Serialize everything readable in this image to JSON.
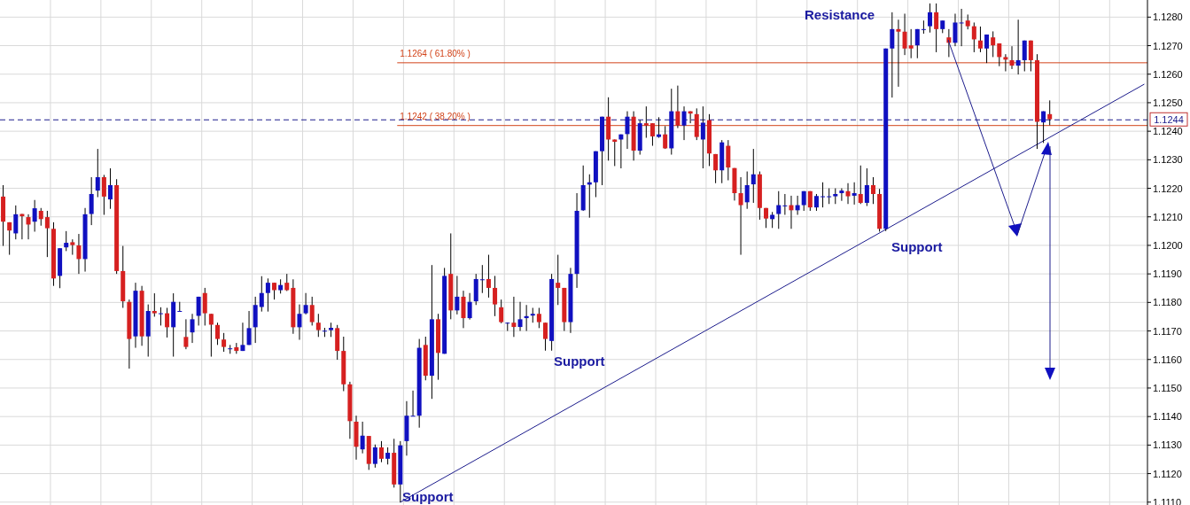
{
  "chart_data": {
    "type": "candlestick",
    "categories": [
      null,
      null,
      null,
      null,
      null,
      null,
      null,
      null,
      null,
      null,
      null,
      null,
      null,
      null,
      null,
      null,
      null,
      null,
      null,
      null,
      null,
      null,
      null,
      null,
      null,
      null,
      null,
      null,
      null,
      null,
      null,
      null,
      null,
      null,
      null,
      null,
      null,
      null,
      null,
      null,
      null,
      null,
      null,
      null,
      null,
      null,
      null,
      null,
      null,
      null,
      null,
      null,
      null,
      null,
      null,
      null,
      null,
      null,
      null,
      null,
      null,
      null,
      null,
      null,
      null,
      null,
      null,
      null,
      null,
      null,
      null,
      null,
      null,
      null,
      null,
      null,
      null,
      null,
      null,
      null,
      null,
      null,
      null,
      null,
      null,
      null,
      null,
      null,
      null,
      null,
      null,
      null,
      null,
      null,
      null,
      null,
      null,
      null,
      null,
      null,
      null,
      null,
      null,
      null,
      null,
      null,
      null,
      null,
      null,
      null,
      null,
      null,
      null,
      null,
      null,
      null,
      null,
      null,
      null,
      null,
      null,
      null,
      null,
      null,
      null,
      null,
      null,
      null,
      null,
      null,
      null,
      null,
      null,
      null,
      null,
      null,
      null,
      null,
      null,
      null,
      null,
      null,
      null,
      null,
      null,
      null,
      null,
      null,
      null,
      null,
      null,
      null,
      null,
      null,
      null,
      null,
      null,
      null,
      null,
      null,
      null,
      null,
      null,
      null,
      null,
      null,
      null,
      null,
      null,
      null,
      null,
      null,
      null,
      null,
      null,
      null,
      null,
      null,
      null,
      null,
      null,
      null
    ],
    "ohlc": [
      [
        1.12171,
        1.12211,
        1.11998,
        1.12083
      ],
      [
        1.12081,
        1.12081,
        1.11967,
        1.12052
      ],
      [
        1.12042,
        1.1214,
        1.12021,
        1.12109
      ],
      [
        1.1211,
        1.1211,
        1.12021,
        1.12102
      ],
      [
        1.12099,
        1.12109,
        1.12021,
        1.12073
      ],
      [
        1.12083,
        1.12159,
        1.12048,
        1.1213
      ],
      [
        1.12121,
        1.12131,
        1.12069,
        1.12092
      ],
      [
        1.12099,
        1.12121,
        1.11959,
        1.1206
      ],
      [
        1.12058,
        1.12081,
        1.11858,
        1.11884
      ],
      [
        1.11893,
        1.1199,
        1.1185,
        1.1199
      ],
      [
        1.11993,
        1.1205,
        1.1198,
        1.12009
      ],
      [
        1.12011,
        1.12021,
        1.11967,
        1.12001
      ],
      [
        1.12,
        1.1204,
        1.119,
        1.11952
      ],
      [
        1.11952,
        1.12131,
        1.11908,
        1.12109
      ],
      [
        1.1211,
        1.12239,
        1.12071,
        1.1218
      ],
      [
        1.12192,
        1.12338,
        1.12169,
        1.12239
      ],
      [
        1.12239,
        1.12247,
        1.12107,
        1.12171
      ],
      [
        1.12161,
        1.1227,
        1.12128,
        1.12211
      ],
      [
        1.12211,
        1.12232,
        1.119,
        1.1191
      ],
      [
        1.1191,
        1.11998,
        1.11781,
        1.11804
      ],
      [
        1.11802,
        1.1181,
        1.11568,
        1.11672
      ],
      [
        1.11681,
        1.11869,
        1.11641,
        1.11841
      ],
      [
        1.11841,
        1.11858,
        1.11648,
        1.11681
      ],
      [
        1.11681,
        1.11793,
        1.1161,
        1.1177
      ],
      [
        1.1177,
        1.11832,
        1.1175,
        1.11762
      ],
      [
        1.11762,
        1.11783,
        1.11719,
        1.11762
      ],
      [
        1.11762,
        1.11781,
        1.11677,
        1.11713
      ],
      [
        1.11713,
        1.11832,
        1.1161,
        1.11802
      ],
      [
        1.1177,
        1.11802,
        1.11768,
        1.1177
      ],
      [
        1.11679,
        1.11741,
        1.11636,
        1.11644
      ],
      [
        1.11695,
        1.1176,
        1.11658,
        1.11741
      ],
      [
        1.11753,
        1.1182,
        1.11719,
        1.1182
      ],
      [
        1.11833,
        1.11851,
        1.11719,
        1.11762
      ],
      [
        1.1176,
        1.1176,
        1.1161,
        1.11722
      ],
      [
        1.11721,
        1.11729,
        1.11651,
        1.11672
      ],
      [
        1.1167,
        1.11693,
        1.11627,
        1.11644
      ],
      [
        1.11639,
        1.11651,
        1.1162,
        1.11639
      ],
      [
        1.11643,
        1.11658,
        1.1162,
        1.1163
      ],
      [
        1.1163,
        1.11729,
        1.1163,
        1.11651
      ],
      [
        1.11651,
        1.1177,
        1.11651,
        1.1171
      ],
      [
        1.11713,
        1.1182,
        1.11658,
        1.11791
      ],
      [
        1.11784,
        1.11892,
        1.11768,
        1.11833
      ],
      [
        1.11833,
        1.11884,
        1.11768,
        1.11869
      ],
      [
        1.11869,
        1.11869,
        1.1181,
        1.11843
      ],
      [
        1.11843,
        1.11881,
        1.11831,
        1.11861
      ],
      [
        1.11869,
        1.119,
        1.1184,
        1.11843
      ],
      [
        1.11851,
        1.11881,
        1.1169,
        1.11713
      ],
      [
        1.11713,
        1.11793,
        1.11669,
        1.1176
      ],
      [
        1.11762,
        1.11833,
        1.11758,
        1.11791
      ],
      [
        1.11791,
        1.1182,
        1.11719,
        1.11731
      ],
      [
        1.11729,
        1.1176,
        1.11679,
        1.11703
      ],
      [
        1.11701,
        1.11711,
        1.11679,
        1.11701
      ],
      [
        1.11703,
        1.11729,
        1.11679,
        1.11711
      ],
      [
        1.1171,
        1.11721,
        1.11599,
        1.1163
      ],
      [
        1.1163,
        1.1168,
        1.11489,
        1.11513
      ],
      [
        1.11513,
        1.11522,
        1.11322,
        1.11384
      ],
      [
        1.11382,
        1.11403,
        1.11249,
        1.11294
      ],
      [
        1.11285,
        1.11382,
        1.11271,
        1.11333
      ],
      [
        1.11332,
        1.11332,
        1.11213,
        1.11234
      ],
      [
        1.11234,
        1.11302,
        1.11221,
        1.11292
      ],
      [
        1.11292,
        1.11314,
        1.1124,
        1.11252
      ],
      [
        1.11252,
        1.11292,
        1.11232,
        1.11273
      ],
      [
        1.11273,
        1.11322,
        1.11151,
        1.11162
      ],
      [
        1.11162,
        1.11314,
        1.11099,
        1.11299
      ],
      [
        1.11314,
        1.11454,
        1.11263,
        1.11403
      ],
      [
        1.11403,
        1.11491,
        1.11403,
        1.11403
      ],
      [
        1.11403,
        1.11672,
        1.11361,
        1.11641
      ],
      [
        1.11651,
        1.1168,
        1.11527,
        1.11543
      ],
      [
        1.11543,
        1.11931,
        1.11462,
        1.11741
      ],
      [
        1.11741,
        1.1176,
        1.11529,
        1.11623
      ],
      [
        1.1162,
        1.11921,
        1.1162,
        1.11893
      ],
      [
        1.119,
        1.12042,
        1.11741,
        1.11772
      ],
      [
        1.11772,
        1.11893,
        1.11758,
        1.1182
      ],
      [
        1.1182,
        1.11841,
        1.1171,
        1.11745
      ],
      [
        1.11745,
        1.11833,
        1.1174,
        1.11802
      ],
      [
        1.11804,
        1.119,
        1.11791,
        1.11882
      ],
      [
        1.11881,
        1.11931,
        1.11833,
        1.11881
      ],
      [
        1.11882,
        1.11967,
        1.11817,
        1.11851
      ],
      [
        1.11851,
        1.11893,
        1.11752,
        1.11793
      ],
      [
        1.11783,
        1.1181,
        1.11727,
        1.11731
      ],
      [
        1.11729,
        1.1173,
        1.117,
        1.11729
      ],
      [
        1.11729,
        1.1182,
        1.11679,
        1.11714
      ],
      [
        1.11714,
        1.11802,
        1.117,
        1.11741
      ],
      [
        1.11745,
        1.11791,
        1.117,
        1.11752
      ],
      [
        1.11754,
        1.11781,
        1.11729,
        1.1176
      ],
      [
        1.1176,
        1.11781,
        1.1171,
        1.11731
      ],
      [
        1.11729,
        1.11729,
        1.11631,
        1.11672
      ],
      [
        1.11665,
        1.119,
        1.11631,
        1.11882
      ],
      [
        1.11869,
        1.11967,
        1.11791,
        1.11851
      ],
      [
        1.11851,
        1.11851,
        1.117,
        1.11731
      ],
      [
        1.11731,
        1.11921,
        1.11693,
        1.119
      ],
      [
        1.119,
        1.12183,
        1.11851,
        1.12121
      ],
      [
        1.12123,
        1.1228,
        1.12121,
        1.12211
      ],
      [
        1.12213,
        1.12249,
        1.12097,
        1.12221
      ],
      [
        1.12221,
        1.1233,
        1.12169,
        1.1233
      ],
      [
        1.1233,
        1.12451,
        1.12211,
        1.12451
      ],
      [
        1.12451,
        1.12519,
        1.12297,
        1.12371
      ],
      [
        1.12371,
        1.12371,
        1.12278,
        1.12363
      ],
      [
        1.12371,
        1.12389,
        1.1227,
        1.12389
      ],
      [
        1.1239,
        1.1247,
        1.12338,
        1.12451
      ],
      [
        1.12451,
        1.1247,
        1.12297,
        1.12332
      ],
      [
        1.12332,
        1.12439,
        1.12318,
        1.12428
      ],
      [
        1.12428,
        1.12487,
        1.12377,
        1.1242
      ],
      [
        1.12428,
        1.12428,
        1.12349,
        1.12382
      ],
      [
        1.1238,
        1.12449,
        1.12377,
        1.12389
      ],
      [
        1.12389,
        1.12418,
        1.12338,
        1.1234
      ],
      [
        1.1234,
        1.12549,
        1.12318,
        1.1247
      ],
      [
        1.1247,
        1.1256,
        1.12411,
        1.1242
      ],
      [
        1.1242,
        1.12487,
        1.12369,
        1.1247
      ],
      [
        1.1247,
        1.1247,
        1.12428,
        1.12462
      ],
      [
        1.1246,
        1.1248,
        1.12369,
        1.1238
      ],
      [
        1.12371,
        1.12487,
        1.1227,
        1.1243
      ],
      [
        1.12439,
        1.1246,
        1.12278,
        1.12322
      ],
      [
        1.1232,
        1.1232,
        1.12218,
        1.12263
      ],
      [
        1.12263,
        1.12369,
        1.12218,
        1.12361
      ],
      [
        1.12349,
        1.12369,
        1.12228,
        1.12273
      ],
      [
        1.12271,
        1.12271,
        1.12157,
        1.12183
      ],
      [
        1.12183,
        1.12239,
        1.11967,
        1.12141
      ],
      [
        1.12151,
        1.12259,
        1.12128,
        1.12211
      ],
      [
        1.12214,
        1.12338,
        1.12149,
        1.12249
      ],
      [
        1.12249,
        1.12259,
        1.1209,
        1.12131
      ],
      [
        1.12131,
        1.12131,
        1.12061,
        1.12094
      ],
      [
        1.12092,
        1.12117,
        1.12061,
        1.12107
      ],
      [
        1.1211,
        1.1219,
        1.12058,
        1.12141
      ],
      [
        1.1214,
        1.1218,
        1.12107,
        1.1214
      ],
      [
        1.12141,
        1.12174,
        1.12058,
        1.12123
      ],
      [
        1.12123,
        1.12174,
        1.12107,
        1.12141
      ],
      [
        1.12141,
        1.1219,
        1.12121,
        1.1219
      ],
      [
        1.1219,
        1.1219,
        1.12121,
        1.12133
      ],
      [
        1.12133,
        1.1218,
        1.12121,
        1.12173
      ],
      [
        1.12172,
        1.12221,
        1.12133,
        1.12172
      ],
      [
        1.12172,
        1.122,
        1.12145,
        1.12172
      ],
      [
        1.12172,
        1.122,
        1.12145,
        1.1218
      ],
      [
        1.12183,
        1.122,
        1.12156,
        1.12192
      ],
      [
        1.1219,
        1.12218,
        1.12145,
        1.12172
      ],
      [
        1.12174,
        1.12221,
        1.12143,
        1.12183
      ],
      [
        1.1218,
        1.1228,
        1.12145,
        1.12149
      ],
      [
        1.12149,
        1.1227,
        1.12138,
        1.12211
      ],
      [
        1.12211,
        1.12239,
        1.12145,
        1.1218
      ],
      [
        1.1218,
        1.12198,
        1.12048,
        1.12058
      ],
      [
        1.12058,
        1.1269,
        1.1205,
        1.1269
      ],
      [
        1.1269,
        1.12817,
        1.12518,
        1.12758
      ],
      [
        1.12758,
        1.12791,
        1.12556,
        1.12749
      ],
      [
        1.12749,
        1.12812,
        1.12667,
        1.1269
      ],
      [
        1.12701,
        1.12758,
        1.12656,
        1.1269
      ],
      [
        1.12701,
        1.12758,
        1.12656,
        1.12758
      ],
      [
        1.12758,
        1.12788,
        1.12742,
        1.12758
      ],
      [
        1.12768,
        1.12848,
        1.12746,
        1.12817
      ],
      [
        1.12817,
        1.12848,
        1.12677,
        1.12758
      ],
      [
        1.12758,
        1.12788,
        1.12744,
        1.12788
      ],
      [
        1.12729,
        1.12758,
        1.1266,
        1.1271
      ],
      [
        1.1271,
        1.12812,
        1.12698,
        1.12781
      ],
      [
        1.12781,
        1.12829,
        1.12698,
        1.12781
      ],
      [
        1.12788,
        1.12809,
        1.12757,
        1.12768
      ],
      [
        1.12768,
        1.12781,
        1.12677,
        1.12722
      ],
      [
        1.12718,
        1.12767,
        1.12677,
        1.1269
      ],
      [
        1.1269,
        1.12739,
        1.12639,
        1.12739
      ],
      [
        1.12729,
        1.1275,
        1.1266,
        1.12701
      ],
      [
        1.12708,
        1.12708,
        1.12628,
        1.1266
      ],
      [
        1.1266,
        1.1267,
        1.1261,
        1.12651
      ],
      [
        1.12649,
        1.12698,
        1.12618,
        1.1263
      ],
      [
        1.1263,
        1.12791,
        1.12599,
        1.12649
      ],
      [
        1.12649,
        1.12718,
        1.1261,
        1.12718
      ],
      [
        1.12718,
        1.12718,
        1.1261,
        1.12649
      ],
      [
        1.12649,
        1.1267,
        1.12338,
        1.12433
      ],
      [
        1.12431,
        1.1247,
        1.12359,
        1.1247
      ],
      [
        1.1246,
        1.12508,
        1.12421,
        1.12442
      ],
      null,
      null,
      null,
      null,
      null,
      null,
      null,
      null,
      null,
      null,
      null,
      null,
      null,
      null,
      null
    ],
    "series": [
      {
        "type": "line",
        "color": "#1c1c8c",
        "values": [
          null,
          null,
          null,
          null,
          null,
          null,
          null,
          null,
          null,
          null,
          null,
          null,
          null,
          null,
          null,
          null,
          null,
          null,
          null,
          null,
          null,
          null,
          null,
          null,
          null,
          null,
          null,
          null,
          null,
          null,
          null,
          null,
          null,
          null,
          null,
          null,
          null,
          null,
          null,
          null,
          null,
          null,
          null,
          null,
          null,
          null,
          null,
          null,
          null,
          null,
          null,
          null,
          null,
          null,
          null,
          null,
          null,
          null,
          null,
          null,
          null,
          null,
          null,
          1.111,
          null,
          null,
          null,
          null,
          null,
          null,
          null,
          null,
          null,
          null,
          null,
          null,
          null,
          null,
          null,
          null,
          null,
          null,
          null,
          null,
          null,
          null,
          null,
          null,
          null,
          null,
          null,
          null,
          null,
          null,
          null,
          null,
          null,
          null,
          null,
          null,
          null,
          null,
          null,
          null,
          null,
          null,
          null,
          null,
          null,
          null,
          null,
          null,
          null,
          null,
          null,
          null,
          null,
          null,
          null,
          null,
          null,
          null,
          null,
          null,
          null,
          null,
          null,
          null,
          null,
          null,
          null,
          null,
          null,
          null,
          null,
          null,
          null,
          null,
          null,
          null,
          null,
          null,
          null,
          null,
          null,
          null,
          null,
          null,
          null,
          null,
          null,
          null,
          null,
          null,
          null,
          null,
          null,
          null,
          null,
          null,
          null,
          null,
          null,
          null,
          null,
          null,
          null,
          null,
          null,
          null,
          null,
          null,
          null,
          null,
          null,
          null,
          null,
          null,
          null,
          null,
          null,
          1.12565
        ]
      }
    ],
    "ylim": [
      1.1109,
      1.1286
    ],
    "yticks": [
      {
        "value": 1.111,
        "label": "1.1110"
      },
      {
        "value": 1.112,
        "label": "1.1120"
      },
      {
        "value": 1.113,
        "label": "1.1130"
      },
      {
        "value": 1.114,
        "label": "1.1140"
      },
      {
        "value": 1.115,
        "label": "1.1150"
      },
      {
        "value": 1.116,
        "label": "1.1160"
      },
      {
        "value": 1.117,
        "label": "1.1170"
      },
      {
        "value": 1.118,
        "label": "1.1180"
      },
      {
        "value": 1.119,
        "label": "1.1190"
      },
      {
        "value": 1.12,
        "label": "1.1200"
      },
      {
        "value": 1.121,
        "label": "1.1210"
      },
      {
        "value": 1.122,
        "label": "1.1220"
      },
      {
        "value": 1.123,
        "label": "1.1230"
      },
      {
        "value": 1.124,
        "label": "1.1240"
      },
      {
        "value": 1.125,
        "label": "1.1250"
      },
      {
        "value": 1.126,
        "label": "1.1260"
      },
      {
        "value": 1.127,
        "label": "1.1270"
      },
      {
        "value": 1.128,
        "label": "1.1280"
      }
    ],
    "ref_lines": [
      {
        "axis": "y",
        "value": 1.1264,
        "label": "1.1264 ( 61.80% )",
        "color": "#d2441a",
        "line_style": "solid"
      },
      {
        "axis": "y",
        "value": 1.1242,
        "label": "1.1242 ( 38.20% )",
        "color": "#d2441a",
        "line_style": "solid"
      },
      {
        "axis": "y",
        "value": 1.1244,
        "label": "1.1244",
        "color": "#1c1c8c",
        "line_style": "dashed"
      }
    ],
    "annotations": [
      "Resistance",
      "Support",
      "Support",
      "Support"
    ],
    "grid": true
  }
}
